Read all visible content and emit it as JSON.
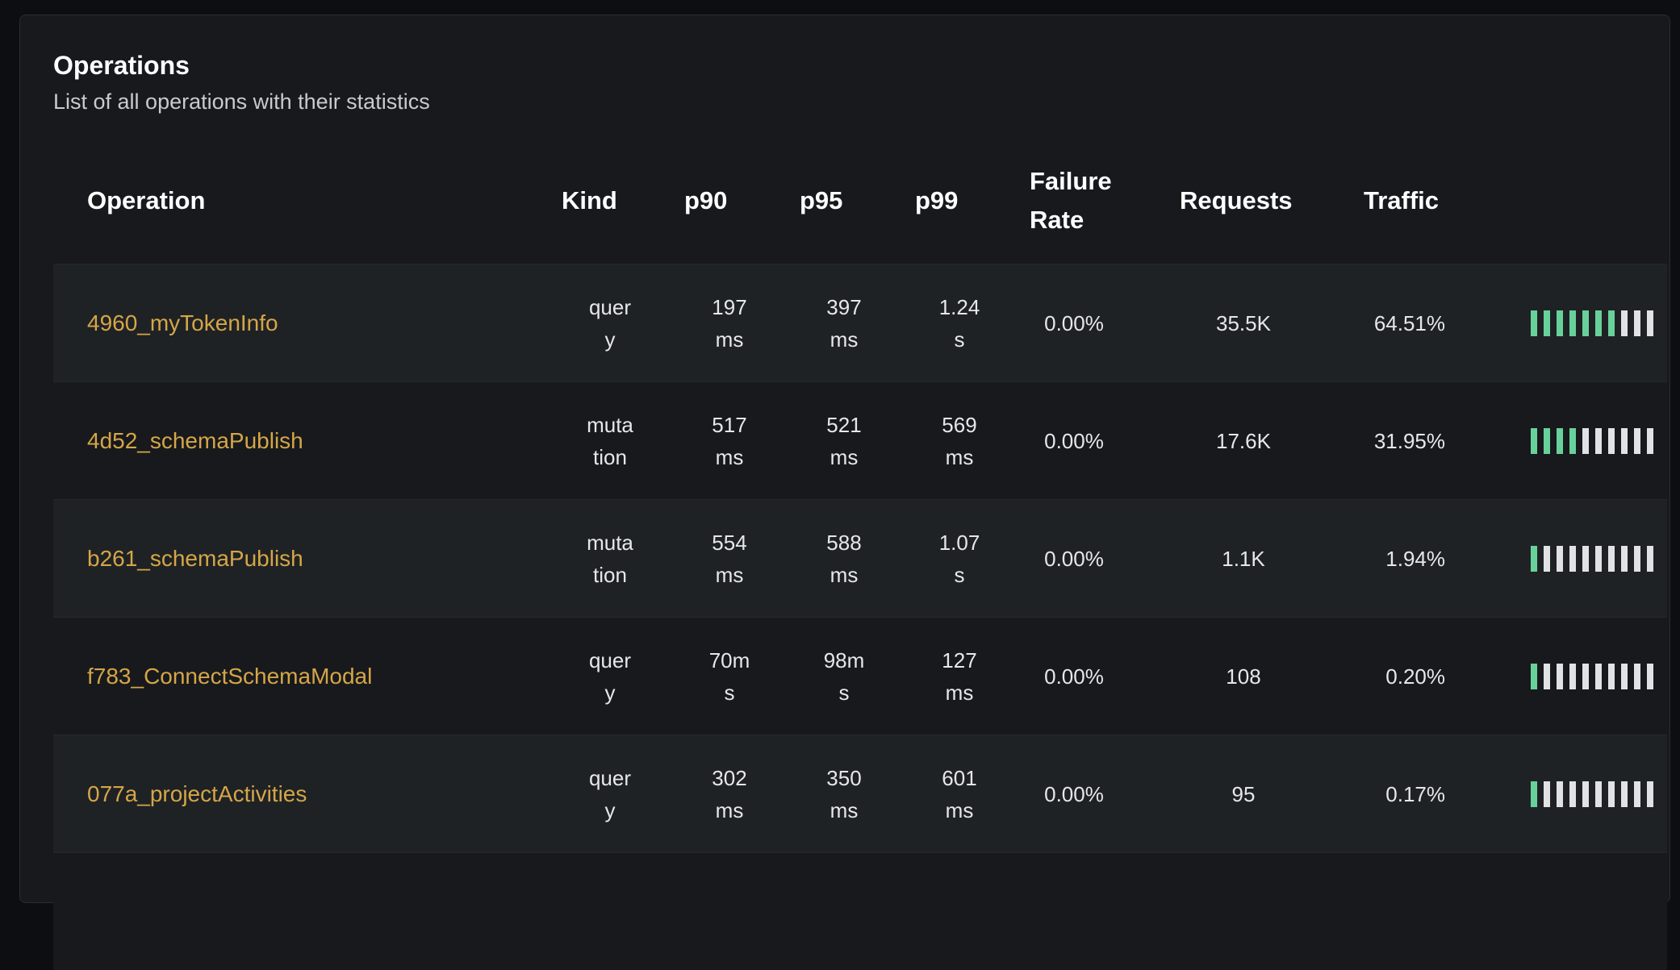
{
  "header": {
    "title": "Operations",
    "subtitle": "List of all operations with their statistics"
  },
  "columns": {
    "operation": "Operation",
    "kind": "Kind",
    "p90": "p90",
    "p95": "p95",
    "p99": "p99",
    "failure_rate": "Failure Rate",
    "requests": "Requests",
    "traffic": "Traffic"
  },
  "colors": {
    "operation_name": "#d5a647",
    "traffic_on": "#68d19b",
    "traffic_off": "#e1e2e4"
  },
  "rows": [
    {
      "name": "4960_myTokenInfo",
      "kind": "query",
      "p90": "197 ms",
      "p95": "397 ms",
      "p99": "1.24 s",
      "failure_rate": "0.00%",
      "requests": "35.5K",
      "traffic": "64.51%",
      "traffic_bars": 7
    },
    {
      "name": "4d52_schemaPublish",
      "kind": "mutation",
      "p90": "517 ms",
      "p95": "521 ms",
      "p99": "569 ms",
      "failure_rate": "0.00%",
      "requests": "17.6K",
      "traffic": "31.95%",
      "traffic_bars": 4
    },
    {
      "name": "b261_schemaPublish",
      "kind": "mutation",
      "p90": "554 ms",
      "p95": "588 ms",
      "p99": "1.07 s",
      "failure_rate": "0.00%",
      "requests": "1.1K",
      "traffic": "1.94%",
      "traffic_bars": 1
    },
    {
      "name": "f783_ConnectSchemaModal",
      "kind": "query",
      "p90": "70ms",
      "p95": "98ms",
      "p99": "127 ms",
      "failure_rate": "0.00%",
      "requests": "108",
      "traffic": "0.20%",
      "traffic_bars": 1
    },
    {
      "name": "077a_projectActivities",
      "kind": "query",
      "p90": "302 ms",
      "p95": "350 ms",
      "p99": "601 ms",
      "failure_rate": "0.00%",
      "requests": "95",
      "traffic": "0.17%",
      "traffic_bars": 1
    }
  ]
}
